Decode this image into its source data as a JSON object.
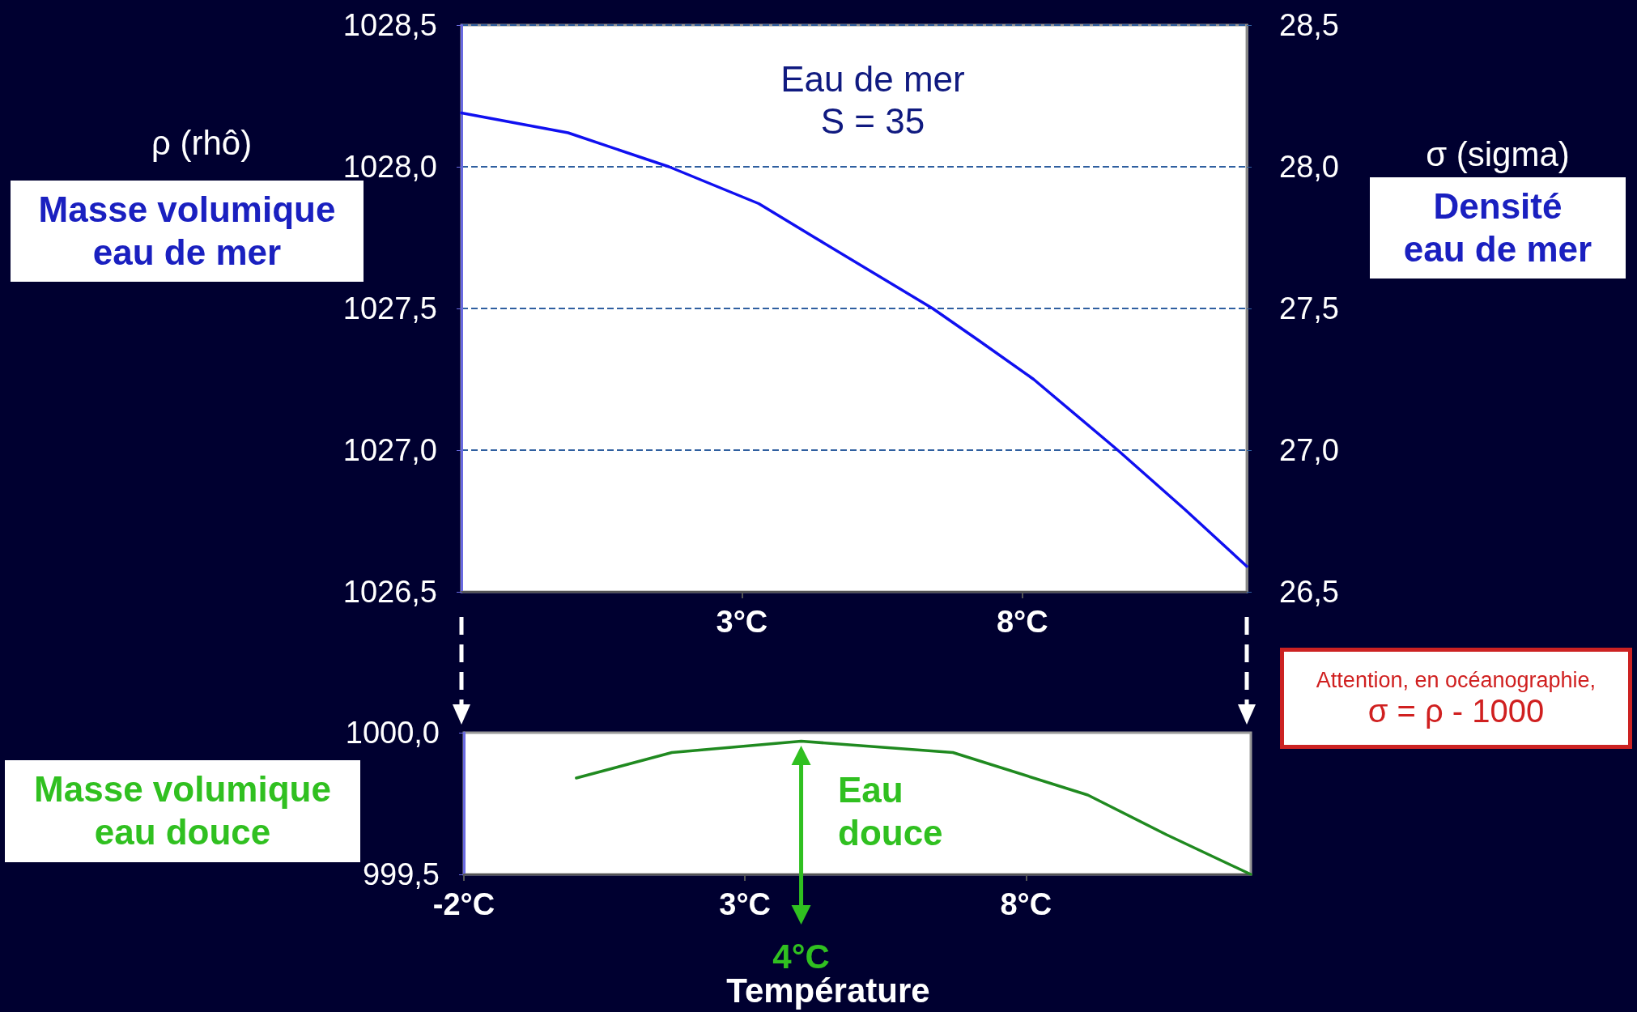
{
  "chart_data": [
    {
      "type": "line",
      "title": "Eau de mer",
      "subtitle": "S = 35",
      "ylabel": "Masse volumique eau de mer",
      "y2label": "Densité eau de mer",
      "annotations": [
        "ρ (rhô)",
        "σ (sigma)",
        "Attention, en océanographie,",
        "σ = ρ - 1000"
      ],
      "x": [
        -2,
        -0.1,
        1.7,
        3.3,
        4.3,
        6.4,
        7.2,
        8.2,
        9.7,
        10.9,
        12
      ],
      "series": [
        {
          "color": "#1010f0",
          "values": [
            1028.19,
            1028.12,
            1028.0,
            1027.87,
            1027.75,
            1027.5,
            1027.39,
            1027.25,
            1027.0,
            1026.79,
            1026.59
          ]
        }
      ],
      "xlim": [
        -2,
        12
      ],
      "xticks": [
        {
          "value": 3,
          "label": "3°C"
        },
        {
          "value": 8,
          "label": "8°C"
        }
      ],
      "ylim": [
        1026.5,
        1028.5
      ],
      "yticks": [
        {
          "value": 1026.5,
          "label": "1026,5"
        },
        {
          "value": 1027,
          "label": "1027,0"
        },
        {
          "value": 1027.5,
          "label": "1027,5"
        },
        {
          "value": 1028,
          "label": "1028,0"
        },
        {
          "value": 1028.5,
          "label": "1028,5"
        }
      ],
      "y2lim": [
        26.5,
        28.5
      ],
      "y2ticks": [
        {
          "value": 26.5,
          "label": "26,5"
        },
        {
          "value": 27,
          "label": "27,0"
        },
        {
          "value": 27.5,
          "label": "27,5"
        },
        {
          "value": 28,
          "label": "28,0"
        },
        {
          "value": 28.5,
          "label": "28,5"
        }
      ],
      "grid": "y",
      "marker": "none"
    },
    {
      "type": "line",
      "ylabel": "Masse volumique eau douce",
      "xlabel": "Température",
      "annotations": [
        "Eau douce"
      ],
      "ref_lines": [
        {
          "axis": "x",
          "value": 4,
          "label": "4°C",
          "color": "#30c020"
        }
      ],
      "x": [
        0,
        1.7,
        4,
        6.7,
        9.1,
        10.5,
        12
      ],
      "series": [
        {
          "color": "#208a20",
          "values": [
            999.84,
            999.93,
            999.97,
            999.93,
            999.78,
            999.64,
            999.5
          ]
        }
      ],
      "xlim": [
        -2,
        12
      ],
      "xticks": [
        {
          "value": -2,
          "label": "-2°C"
        },
        {
          "value": 3,
          "label": "3°C"
        },
        {
          "value": 8,
          "label": "8°C"
        }
      ],
      "ylim": [
        999.5,
        1000
      ],
      "yticks": [
        {
          "value": 999.5,
          "label": "999,5"
        },
        {
          "value": 1000,
          "label": "1000,0"
        }
      ],
      "marker": "none"
    }
  ]
}
